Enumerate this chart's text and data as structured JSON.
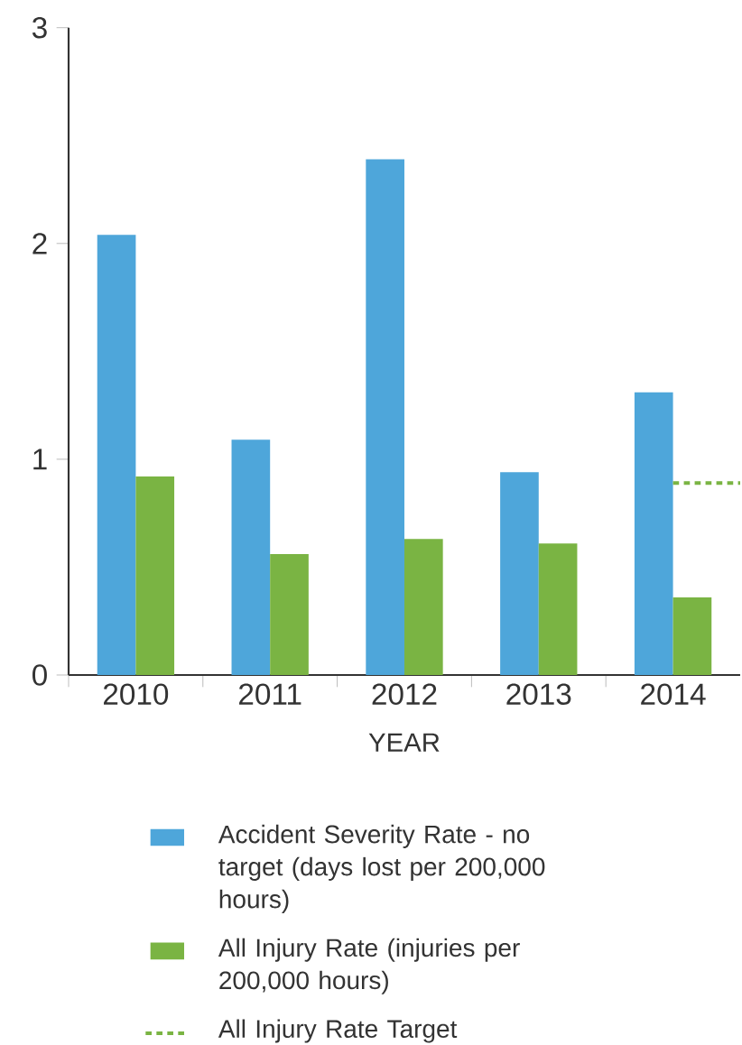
{
  "chart_data": {
    "type": "bar",
    "xlabel": "YEAR",
    "categories": [
      "2010",
      "2011",
      "2012",
      "2013",
      "2014"
    ],
    "series": [
      {
        "name": "Accident Severity Rate - no target (days lost per 200,000 hours)",
        "color": "#4ea6da",
        "values": [
          2.04,
          1.09,
          2.39,
          0.94,
          1.31
        ]
      },
      {
        "name": "All Injury Rate (injuries per 200,000 hours)",
        "color": "#7ab443",
        "values": [
          0.92,
          0.56,
          0.63,
          0.61,
          0.36
        ]
      }
    ],
    "ref_lines": [
      {
        "axis": "y",
        "value": 0.89,
        "label": "All Injury Rate Target",
        "color": "#7ab443",
        "line_style": "dotted"
      }
    ],
    "ylim": [
      0,
      3
    ],
    "yticks": [
      0,
      1,
      2,
      3
    ],
    "grid": false,
    "legend": "bottom"
  }
}
